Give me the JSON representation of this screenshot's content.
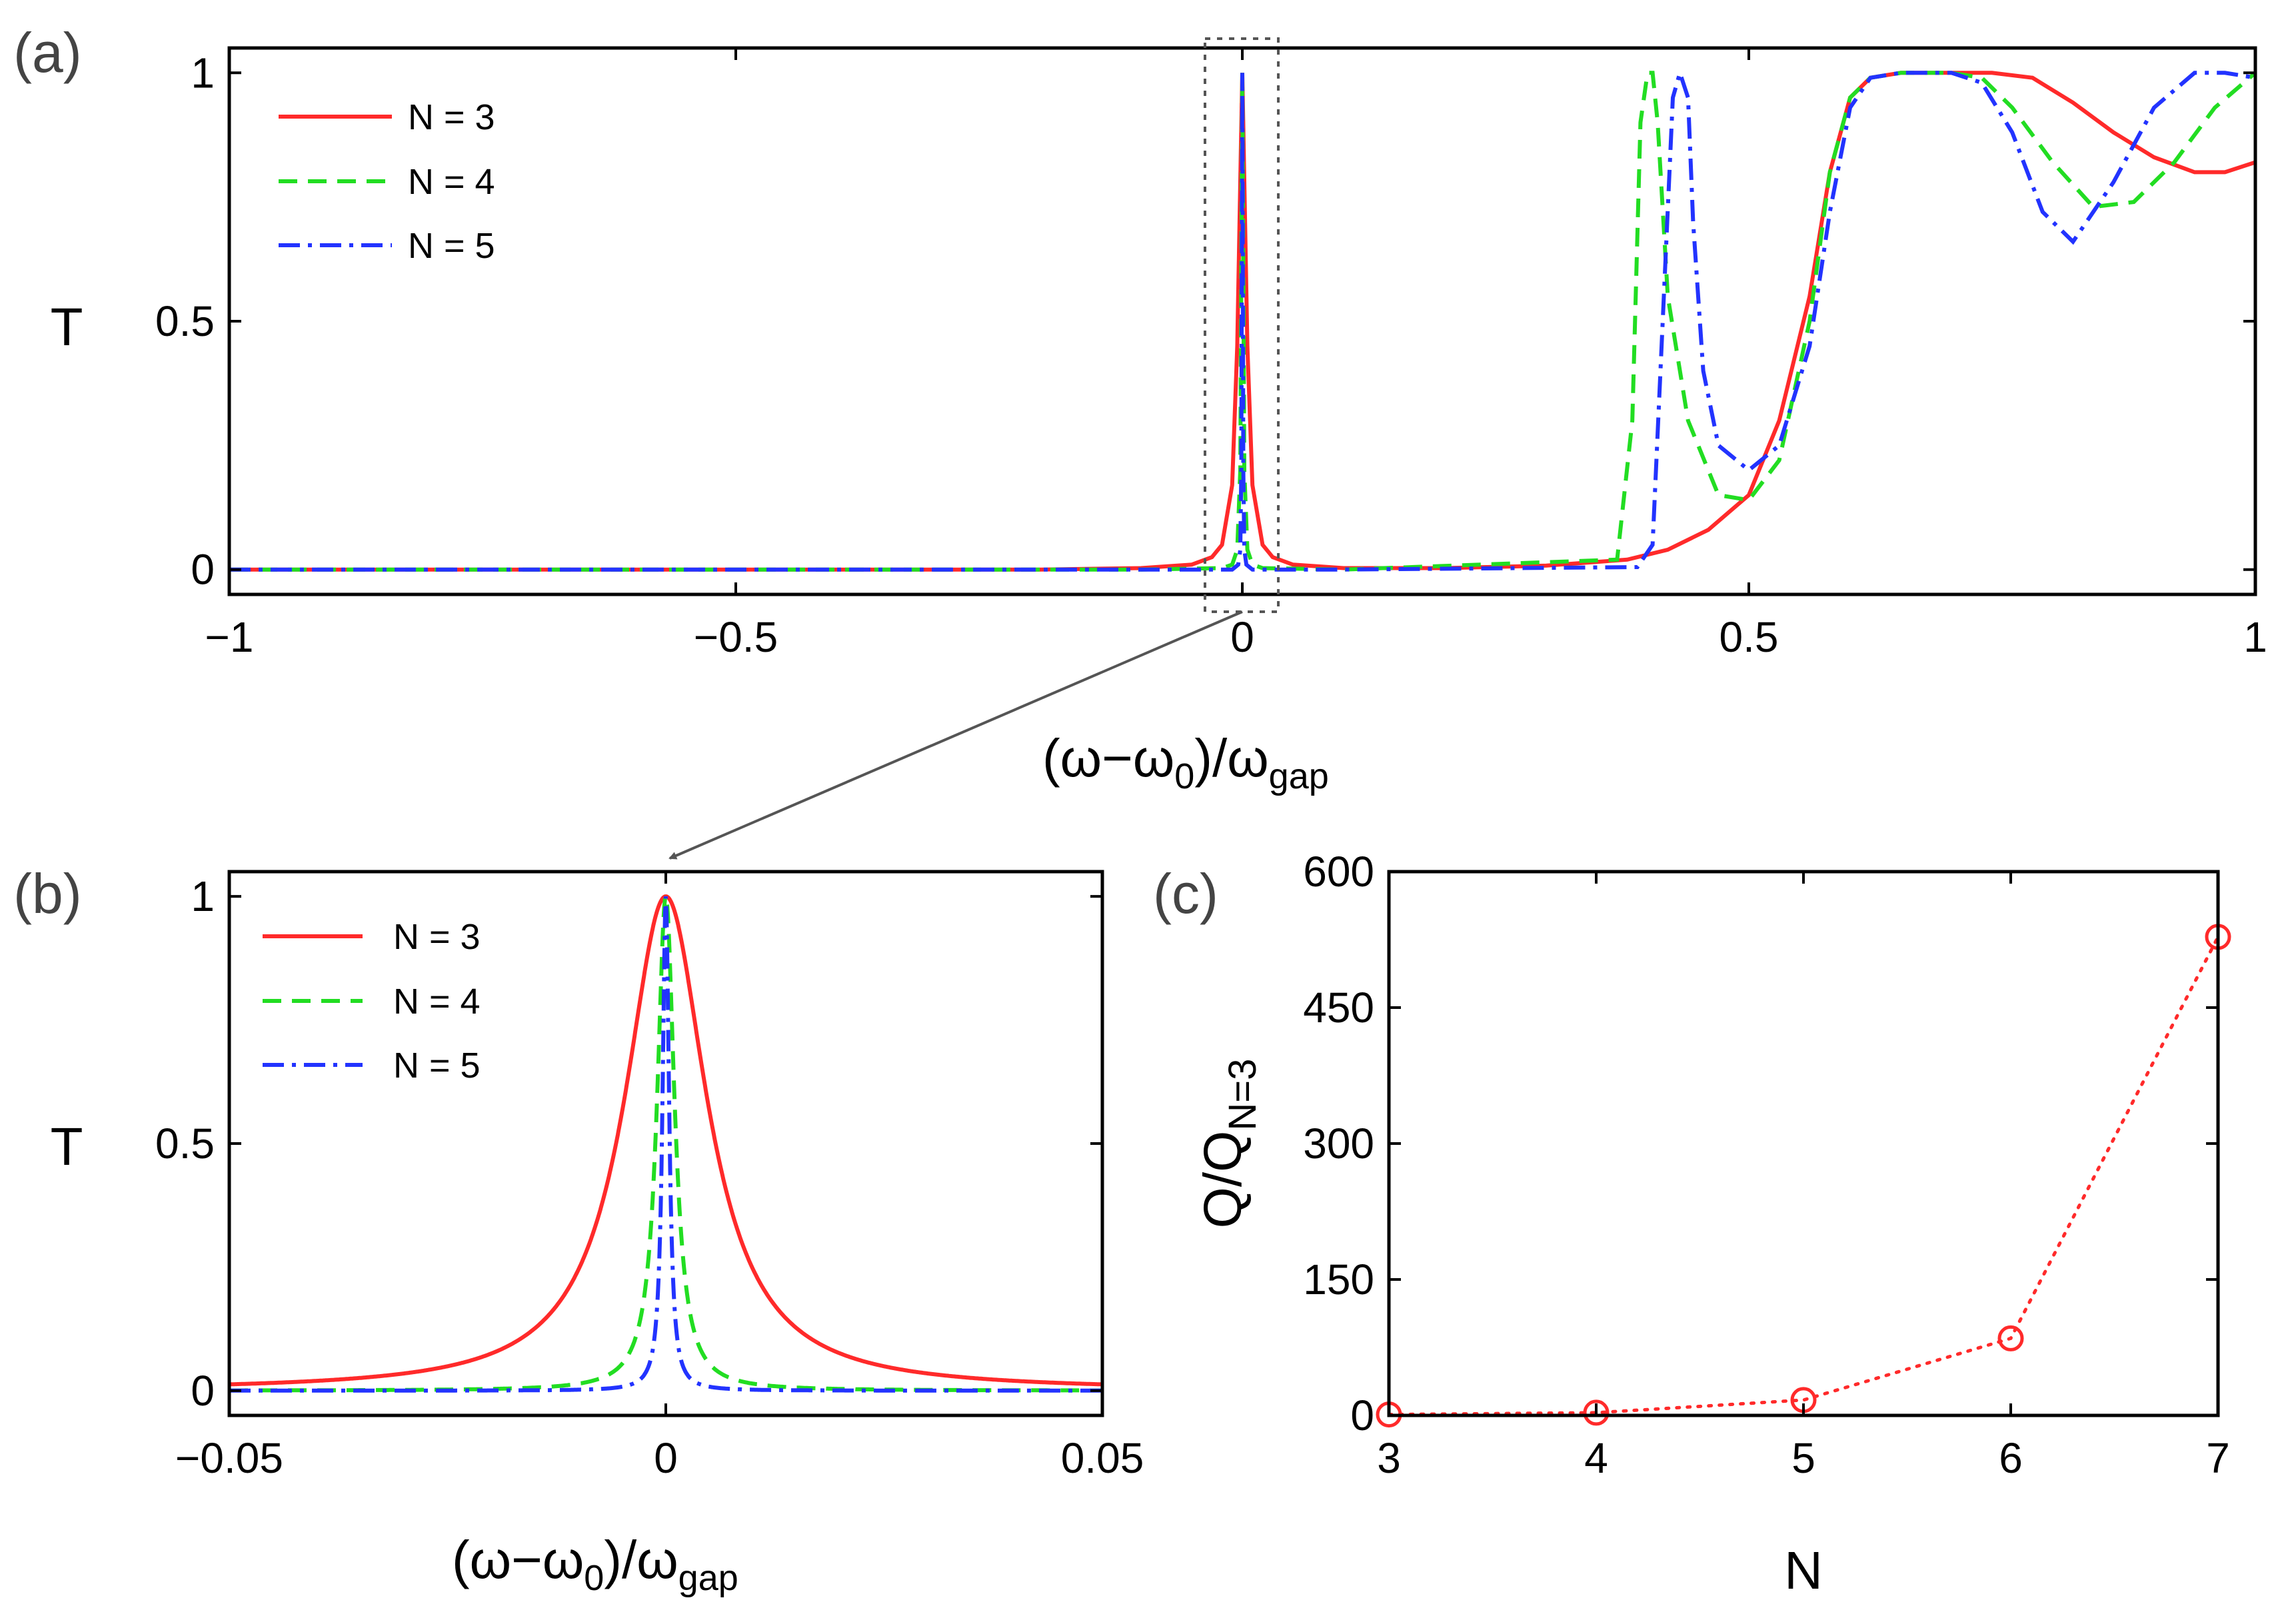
{
  "colors": {
    "n3": "#ff2a2a",
    "n4": "#22dd22",
    "n5": "#2233ff",
    "axis": "#000000",
    "annotation": "#555555",
    "markers": "#ff2a2a"
  },
  "chart_data": [
    {
      "id": "a",
      "panel_label": "(a)",
      "type": "line",
      "xlabel": "(ω−ω",
      "xlabel_sub0": "0",
      "xlabel_mid": ")/ω",
      "xlabel_sub1": "gap",
      "ylabel": "T",
      "xlim": [
        -1,
        1
      ],
      "ylim": [
        -0.05,
        1.05
      ],
      "xticks": [
        -1,
        -0.5,
        0,
        0.5,
        1
      ],
      "xtick_labels": [
        "−1",
        "−0.5",
        "0",
        "0.5",
        "1"
      ],
      "yticks": [
        0,
        0.5,
        1
      ],
      "ytick_labels": [
        "0",
        "0.5",
        "1"
      ],
      "legend_position": "top-left",
      "series": [
        {
          "name": "N = 3",
          "style": "solid",
          "x": [
            -1,
            -0.5,
            -0.2,
            -0.1,
            -0.05,
            -0.03,
            -0.02,
            -0.01,
            -0.005,
            0,
            0.005,
            0.01,
            0.02,
            0.03,
            0.05,
            0.1,
            0.2,
            0.3,
            0.38,
            0.42,
            0.46,
            0.5,
            0.53,
            0.56,
            0.58,
            0.6,
            0.62,
            0.65,
            0.7,
            0.74,
            0.78,
            0.82,
            0.86,
            0.9,
            0.94,
            0.97,
            1.0
          ],
          "y": [
            0,
            0,
            0,
            0.003,
            0.01,
            0.025,
            0.05,
            0.17,
            0.45,
            1,
            0.45,
            0.17,
            0.05,
            0.025,
            0.01,
            0.003,
            0.003,
            0.008,
            0.02,
            0.04,
            0.08,
            0.15,
            0.3,
            0.55,
            0.8,
            0.95,
            0.99,
            1.0,
            1.0,
            1.0,
            0.99,
            0.94,
            0.88,
            0.83,
            0.8,
            0.8,
            0.82
          ]
        },
        {
          "name": "N = 4",
          "style": "dash",
          "x": [
            -1,
            -0.5,
            -0.1,
            -0.02,
            -0.01,
            -0.005,
            -0.002,
            0,
            0.002,
            0.005,
            0.01,
            0.02,
            0.1,
            0.37,
            0.385,
            0.393,
            0.4,
            0.405,
            0.41,
            0.42,
            0.44,
            0.47,
            0.5,
            0.53,
            0.56,
            0.58,
            0.6,
            0.62,
            0.65,
            0.7,
            0.73,
            0.76,
            0.8,
            0.84,
            0.88,
            0.92,
            0.96,
            1.0
          ],
          "y": [
            0,
            0,
            0,
            0.003,
            0.01,
            0.04,
            0.2,
            1,
            0.2,
            0.04,
            0.01,
            0.003,
            0,
            0.02,
            0.3,
            0.9,
            1.0,
            1.0,
            0.9,
            0.55,
            0.3,
            0.15,
            0.14,
            0.22,
            0.5,
            0.8,
            0.95,
            0.99,
            1.0,
            1.0,
            0.99,
            0.93,
            0.82,
            0.73,
            0.74,
            0.82,
            0.93,
            1.0
          ]
        },
        {
          "name": "N = 5",
          "style": "dashdot",
          "x": [
            -1,
            -0.5,
            -0.1,
            -0.01,
            -0.004,
            -0.002,
            -0.001,
            0,
            0.001,
            0.002,
            0.004,
            0.01,
            0.1,
            0.39,
            0.405,
            0.415,
            0.425,
            0.432,
            0.44,
            0.445,
            0.455,
            0.47,
            0.5,
            0.53,
            0.56,
            0.58,
            0.6,
            0.62,
            0.65,
            0.7,
            0.73,
            0.76,
            0.79,
            0.82,
            0.86,
            0.9,
            0.94,
            0.97,
            1.0
          ],
          "y": [
            0,
            0,
            0,
            0,
            0.01,
            0.04,
            0.2,
            1,
            0.2,
            0.04,
            0.01,
            0,
            0,
            0.005,
            0.05,
            0.5,
            0.95,
            1.0,
            0.95,
            0.7,
            0.4,
            0.25,
            0.2,
            0.25,
            0.45,
            0.72,
            0.93,
            0.99,
            1.0,
            1.0,
            0.98,
            0.88,
            0.72,
            0.66,
            0.78,
            0.93,
            1.0,
            1.0,
            0.99
          ]
        }
      ]
    },
    {
      "id": "b",
      "panel_label": "(b)",
      "type": "line",
      "xlabel": "(ω−ω",
      "xlabel_sub0": "0",
      "xlabel_mid": ")/ω",
      "xlabel_sub1": "gap",
      "ylabel": "T",
      "xlim": [
        -0.05,
        0.05
      ],
      "ylim": [
        -0.05,
        1.05
      ],
      "xticks": [
        -0.05,
        0,
        0.05
      ],
      "xtick_labels": [
        "−0.05",
        "0",
        "0.05"
      ],
      "yticks": [
        0,
        0.5,
        1
      ],
      "ytick_labels": [
        "0",
        "0.5",
        "1"
      ],
      "legend_position": "top-left",
      "lorentzian_hwhm": {
        "N = 3": 0.0057,
        "N = 4": 0.0012,
        "N = 5": 0.00045
      },
      "series": [
        {
          "name": "N = 3",
          "style": "solid"
        },
        {
          "name": "N = 4",
          "style": "dash"
        },
        {
          "name": "N = 5",
          "style": "dashdot"
        }
      ]
    },
    {
      "id": "c",
      "panel_label": "(c)",
      "type": "scatter",
      "xlabel": "N",
      "ylabel": "Q/Q",
      "ylabel_sub": "N=3",
      "xlim": [
        3,
        7
      ],
      "ylim": [
        0,
        600
      ],
      "xticks": [
        3,
        4,
        5,
        6,
        7
      ],
      "xtick_labels": [
        "3",
        "4",
        "5",
        "6",
        "7"
      ],
      "yticks": [
        0,
        150,
        300,
        450,
        600
      ],
      "ytick_labels": [
        "0",
        "150",
        "300",
        "450",
        "600"
      ],
      "series": [
        {
          "name": "Q/Q_N=3",
          "x": [
            3,
            4,
            5,
            6,
            7
          ],
          "y": [
            1,
            3,
            17,
            85,
            528
          ],
          "marker": "circle",
          "line": "dotted"
        }
      ]
    }
  ]
}
